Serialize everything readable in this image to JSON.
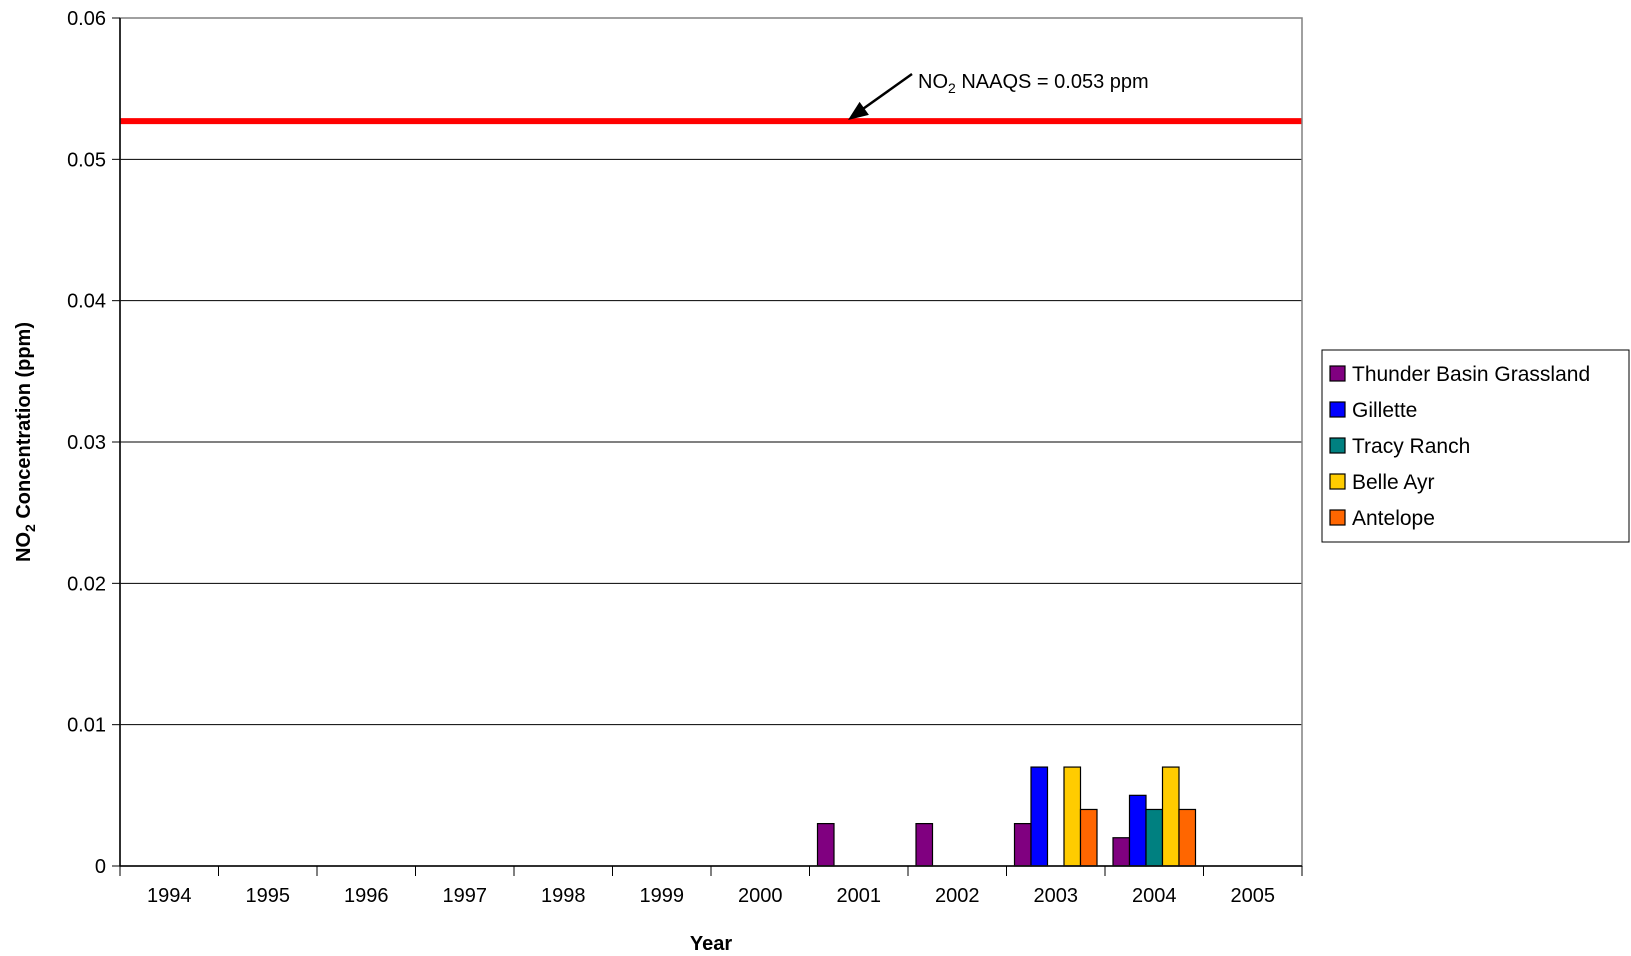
{
  "chart_data": {
    "type": "bar",
    "title": "",
    "xlabel": "Year",
    "ylabel": {
      "pre": "NO",
      "sub": "2",
      "post": " Concentration (ppm)"
    },
    "categories": [
      "1994",
      "1995",
      "1996",
      "1997",
      "1998",
      "1999",
      "2000",
      "2001",
      "2002",
      "2003",
      "2004",
      "2005"
    ],
    "ylim": [
      0,
      0.06
    ],
    "yticks": [
      "0",
      "0.01",
      "0.02",
      "0.03",
      "0.04",
      "0.05",
      "0.06"
    ],
    "grid": true,
    "legend_position": "right",
    "series": [
      {
        "name": "Thunder Basin Grassland",
        "color": "#800080",
        "values": [
          null,
          null,
          null,
          null,
          null,
          null,
          null,
          0.003,
          0.003,
          0.003,
          0.002,
          null
        ]
      },
      {
        "name": "Gillette",
        "color": "#0000ff",
        "values": [
          null,
          null,
          null,
          null,
          null,
          null,
          null,
          null,
          null,
          0.007,
          0.005,
          null
        ]
      },
      {
        "name": "Tracy Ranch",
        "color": "#008080",
        "values": [
          null,
          null,
          null,
          null,
          null,
          null,
          null,
          null,
          null,
          null,
          0.004,
          null
        ]
      },
      {
        "name": "Belle Ayr",
        "color": "#ffcc00",
        "values": [
          null,
          null,
          null,
          null,
          null,
          null,
          null,
          null,
          null,
          0.007,
          0.007,
          null
        ]
      },
      {
        "name": "Antelope",
        "color": "#ff6600",
        "values": [
          null,
          null,
          null,
          null,
          null,
          null,
          null,
          null,
          null,
          0.004,
          0.004,
          null
        ]
      }
    ],
    "reference_line": {
      "value": 0.0527,
      "color": "#ff0000"
    },
    "annotation": {
      "pre": "NO",
      "sub": "2",
      "post": " NAAQS = 0.053 ppm"
    }
  }
}
